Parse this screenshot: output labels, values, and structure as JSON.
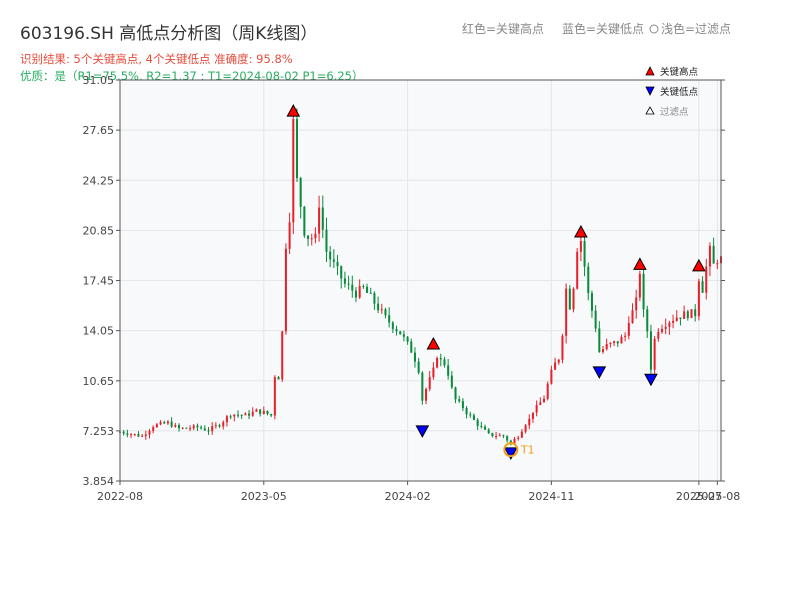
{
  "header": {
    "title": "603196.SH 高低点分析图（周K线图）",
    "result_line": "识别结果: 5个关键高点, 4个关键低点   准确度: 95.8%",
    "quality_line": "优质：是（R1=75.5%, R2=1.37 ; T1=2024-08-02 P1=6.25）",
    "top_legend": {
      "high": "红色=关键高点",
      "low": "蓝色=关键低点",
      "filtered": "浅色=过滤点"
    }
  },
  "legend": {
    "high": "关键高点",
    "low": "关键低点",
    "filtered": "过滤点"
  },
  "colors": {
    "up": "#e8202a",
    "down": "#0a8a3a",
    "high_marker": "#ff0000",
    "low_marker": "#0000ff",
    "result_text": "#e74c3c",
    "quality_text": "#27ae60",
    "t1_marker": "#f39c12",
    "plot_bg": "#f7f9fb",
    "grid": "#e3e6ea"
  },
  "chart_data": {
    "type": "candlestick",
    "x_ticks": [
      "2022-08",
      "2023-05",
      "2024-02",
      "2024-11",
      "2025-07",
      "2025-08"
    ],
    "y_ticks": [
      "3.854",
      "7.253",
      "10.65",
      "14.05",
      "17.45",
      "20.85",
      "24.25",
      "27.65",
      "31.05"
    ],
    "ylim": [
      3.854,
      31.05
    ],
    "xlim_weeks": [
      0,
      163
    ],
    "grid": true,
    "close_path": [
      [
        0,
        7.2
      ],
      [
        6,
        6.9
      ],
      [
        9,
        7.6
      ],
      [
        13,
        7.8
      ],
      [
        16,
        7.4
      ],
      [
        21,
        7.5
      ],
      [
        24,
        7.3
      ],
      [
        27,
        7.7
      ],
      [
        30,
        8.4
      ],
      [
        34,
        8.3
      ],
      [
        37,
        8.6
      ],
      [
        39,
        8.5
      ],
      [
        41,
        8.3
      ],
      [
        42,
        10.9
      ],
      [
        43,
        10.9
      ],
      [
        44,
        14.0
      ],
      [
        45,
        19.6
      ],
      [
        46,
        21.4
      ],
      [
        47,
        28.4
      ],
      [
        48,
        24.4
      ],
      [
        50,
        20.5
      ],
      [
        53,
        20.3
      ],
      [
        54,
        22.4
      ],
      [
        56,
        19.4
      ],
      [
        58,
        18.5
      ],
      [
        61,
        17.2
      ],
      [
        64,
        16.6
      ],
      [
        66,
        16.9
      ],
      [
        68,
        16.3
      ],
      [
        72,
        14.9
      ],
      [
        76,
        13.9
      ],
      [
        79,
        12.7
      ],
      [
        81,
        11.2
      ],
      [
        82,
        9.3
      ],
      [
        84,
        10.9
      ],
      [
        86,
        12.2
      ],
      [
        88,
        11.8
      ],
      [
        91,
        9.4
      ],
      [
        94,
        8.5
      ],
      [
        97,
        7.7
      ],
      [
        100,
        7.0
      ],
      [
        104,
        6.9
      ],
      [
        106,
        6.4
      ],
      [
        109,
        7.2
      ],
      [
        112,
        8.5
      ],
      [
        115,
        9.5
      ],
      [
        117,
        11.4
      ],
      [
        119,
        12.2
      ],
      [
        120,
        13.7
      ],
      [
        121,
        16.9
      ],
      [
        122,
        15.5
      ],
      [
        123,
        16.9
      ],
      [
        124,
        19.4
      ],
      [
        125,
        20.2
      ],
      [
        127,
        16.6
      ],
      [
        129,
        14.2
      ],
      [
        130,
        12.6
      ],
      [
        132,
        13.0
      ],
      [
        135,
        13.3
      ],
      [
        137,
        13.7
      ],
      [
        140,
        16.3
      ],
      [
        141,
        17.9
      ],
      [
        142,
        15.5
      ],
      [
        143,
        14.0
      ],
      [
        144,
        11.4
      ],
      [
        145,
        13.5
      ],
      [
        146,
        14.2
      ],
      [
        148,
        14.6
      ],
      [
        151,
        15.0
      ],
      [
        154,
        15.2
      ],
      [
        156,
        15.2
      ],
      [
        157,
        17.4
      ],
      [
        158,
        16.9
      ],
      [
        159,
        18.4
      ],
      [
        160,
        19.8
      ],
      [
        161,
        18.6
      ],
      [
        162,
        18.9
      ]
    ],
    "key_highs": [
      {
        "week": 47,
        "value": 28.4
      },
      {
        "week": 85,
        "value": 12.6
      },
      {
        "week": 125,
        "value": 20.2
      },
      {
        "week": 141,
        "value": 18.0
      },
      {
        "week": 157,
        "value": 17.9
      }
    ],
    "key_lows": [
      {
        "week": 82,
        "value": 7.8
      },
      {
        "week": 106,
        "value": 6.3
      },
      {
        "week": 130,
        "value": 11.8
      },
      {
        "week": 144,
        "value": 11.3
      }
    ],
    "t1": {
      "week": 106,
      "value": 6.25,
      "label": "T1"
    },
    "chart_labels": {}
  }
}
